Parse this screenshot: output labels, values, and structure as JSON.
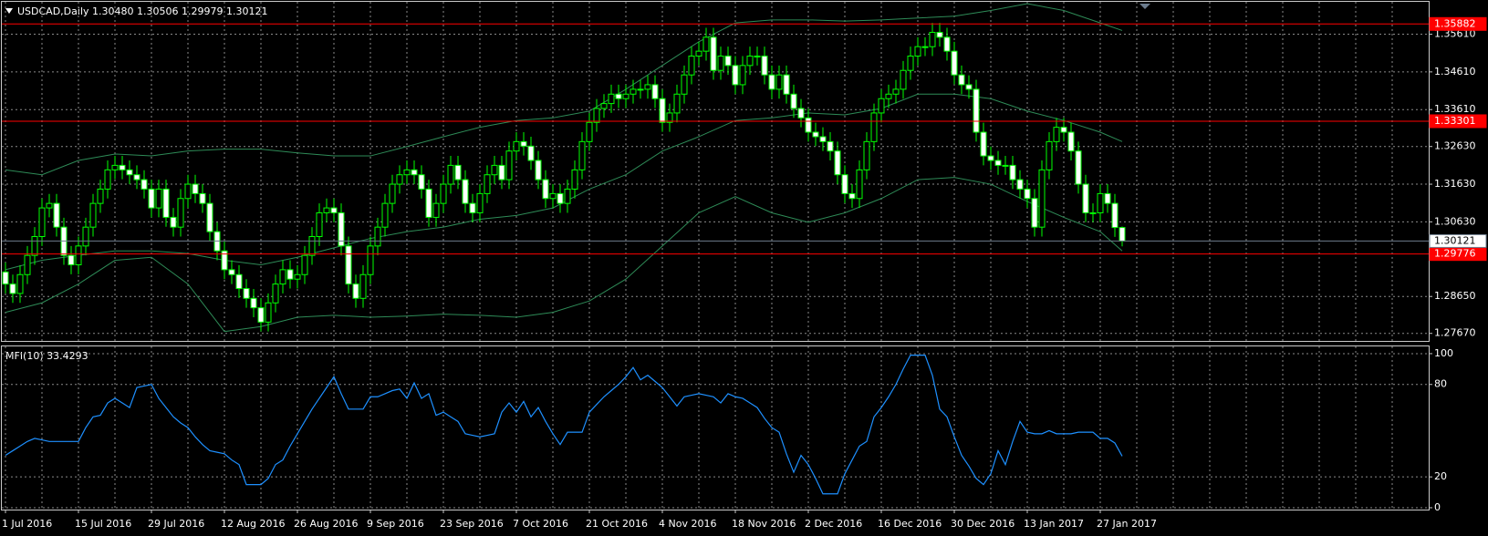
{
  "chart_data": [
    {
      "type": "candlestick",
      "title": "USDCAD,Daily 1.30480 1.30506 1.29979 1.30121",
      "categories": [
        "1 Jul 2016",
        null,
        null,
        null,
        null,
        null,
        null,
        null,
        null,
        null,
        "15 Jul 2016",
        null,
        null,
        null,
        null,
        null,
        null,
        null,
        null,
        null,
        "29 Jul 2016",
        null,
        null,
        null,
        null,
        null,
        null,
        null,
        null,
        null,
        "12 Aug 2016",
        null,
        null,
        null,
        null,
        null,
        null,
        null,
        null,
        null,
        "26 Aug 2016",
        null,
        null,
        null,
        null,
        null,
        null,
        null,
        null,
        null,
        "9 Sep 2016",
        null,
        null,
        null,
        null,
        null,
        null,
        null,
        null,
        null,
        "23 Sep 2016",
        null,
        null,
        null,
        null,
        null,
        null,
        null,
        null,
        null,
        "7 Oct 2016",
        null,
        null,
        null,
        null,
        null,
        null,
        null,
        null,
        null,
        "21 Oct 2016",
        null,
        null,
        null,
        null,
        null,
        null,
        null,
        null,
        null,
        "4 Nov 2016",
        null,
        null,
        null,
        null,
        null,
        null,
        null,
        null,
        null,
        "18 Nov 2016",
        null,
        null,
        null,
        null,
        null,
        null,
        null,
        null,
        null,
        "2 Dec 2016",
        null,
        null,
        null,
        null,
        null,
        null,
        null,
        null,
        null,
        "16 Dec 2016",
        null,
        null,
        null,
        null,
        null,
        null,
        null,
        null,
        null,
        "30 Dec 2016",
        null,
        null,
        null,
        null,
        null,
        null,
        null,
        null,
        null,
        "13 Jan 2017",
        null,
        null,
        null,
        null,
        null,
        null,
        null,
        null,
        null,
        "27 Jan 2017",
        null,
        null,
        null
      ],
      "open": [
        1.293,
        1.2898,
        1.2873,
        1.2923,
        1.2974,
        1.3024,
        1.31,
        1.3112,
        1.3049,
        1.2974,
        1.2949,
        1.2999,
        1.3049,
        1.3112,
        1.315,
        1.3201,
        1.3213,
        1.3201,
        1.3188,
        1.3175,
        1.315,
        1.31,
        1.315,
        1.3075,
        1.3049,
        1.3125,
        1.3163,
        1.3138,
        1.3112,
        1.3037,
        1.2986,
        1.2936,
        1.2923,
        1.2886,
        1.286,
        1.2835,
        1.2797,
        1.2848,
        1.2898,
        1.2936,
        1.2911,
        1.2923,
        1.2974,
        1.3024,
        1.3087,
        1.31,
        1.3087,
        1.2999,
        1.2898,
        1.286,
        1.2923,
        1.2999,
        1.3049,
        1.3112,
        1.3163,
        1.3188,
        1.3201,
        1.3188,
        1.315,
        1.3075,
        1.3112,
        1.3163,
        1.3213,
        1.3175,
        1.3112,
        1.3087,
        1.3138,
        1.3188,
        1.3213,
        1.3175,
        1.3251,
        1.3276,
        1.3264,
        1.3226,
        1.3175,
        1.3125,
        1.3138,
        1.3112,
        1.315,
        1.3201,
        1.3276,
        1.3327,
        1.3364,
        1.3377,
        1.3402,
        1.339,
        1.3402,
        1.3415,
        1.3415,
        1.3427,
        1.339,
        1.3327,
        1.3352,
        1.3402,
        1.3453,
        1.3503,
        1.3516,
        1.3553,
        1.3465,
        1.3503,
        1.3478,
        1.3427,
        1.3478,
        1.3503,
        1.3503,
        1.3453,
        1.3415,
        1.3453,
        1.3402,
        1.3364,
        1.3339,
        1.3301,
        1.3289,
        1.3276,
        1.3251,
        1.3188,
        1.3138,
        1.3125,
        1.3201,
        1.3276,
        1.3352,
        1.339,
        1.3402,
        1.3415,
        1.3465,
        1.3503,
        1.3528,
        1.3528,
        1.3566,
        1.3553,
        1.3516,
        1.3453,
        1.3427,
        1.3415,
        1.3301,
        1.3238,
        1.3226,
        1.3213,
        1.3213,
        1.3175,
        1.315,
        1.3125,
        1.3049,
        1.3201,
        1.3276,
        1.3314,
        1.3301,
        1.3251,
        1.3163,
        1.3087,
        1.3087,
        1.3138,
        1.3112,
        1.3048
      ],
      "high": [
        1.2955,
        1.2923,
        1.2948,
        1.2999,
        1.3049,
        1.3125,
        1.3137,
        1.3137,
        1.3074,
        1.2999,
        1.3024,
        1.3074,
        1.3137,
        1.3175,
        1.3226,
        1.3238,
        1.3238,
        1.3226,
        1.3213,
        1.32,
        1.3175,
        1.3175,
        1.3175,
        1.31,
        1.315,
        1.3188,
        1.3188,
        1.3163,
        1.3137,
        1.3062,
        1.3011,
        1.2961,
        1.2948,
        1.2911,
        1.2885,
        1.286,
        1.2873,
        1.2923,
        1.2961,
        1.2961,
        1.2948,
        1.2999,
        1.3049,
        1.3112,
        1.3125,
        1.3125,
        1.3112,
        1.3024,
        1.2923,
        1.2948,
        1.3024,
        1.3074,
        1.3137,
        1.3188,
        1.3213,
        1.3226,
        1.3226,
        1.3213,
        1.3175,
        1.3137,
        1.3188,
        1.3238,
        1.3238,
        1.32,
        1.3137,
        1.3163,
        1.3213,
        1.3238,
        1.3238,
        1.3276,
        1.3301,
        1.3301,
        1.3289,
        1.3251,
        1.32,
        1.3163,
        1.3163,
        1.3175,
        1.3226,
        1.3301,
        1.3352,
        1.3389,
        1.3402,
        1.3427,
        1.3427,
        1.3427,
        1.344,
        1.344,
        1.3452,
        1.3452,
        1.3415,
        1.3377,
        1.3427,
        1.3478,
        1.3528,
        1.3541,
        1.3578,
        1.3578,
        1.3528,
        1.3528,
        1.3503,
        1.3503,
        1.3528,
        1.3528,
        1.3528,
        1.3478,
        1.3478,
        1.3478,
        1.3427,
        1.3389,
        1.3364,
        1.3326,
        1.3314,
        1.3301,
        1.3276,
        1.3213,
        1.3163,
        1.3226,
        1.3301,
        1.3377,
        1.3415,
        1.3427,
        1.344,
        1.349,
        1.3528,
        1.3553,
        1.3553,
        1.3591,
        1.3591,
        1.3578,
        1.3541,
        1.3478,
        1.3452,
        1.344,
        1.3326,
        1.3263,
        1.3251,
        1.3238,
        1.3238,
        1.32,
        1.3175,
        1.315,
        1.3226,
        1.3301,
        1.3339,
        1.3339,
        1.3326,
        1.3276,
        1.3188,
        1.3112,
        1.3163,
        1.3163,
        1.3137,
        1.30506
      ],
      "low": [
        1.2873,
        1.2848,
        1.2848,
        1.2898,
        1.2949,
        1.2999,
        1.3075,
        1.3024,
        1.2949,
        1.2924,
        1.2924,
        1.2974,
        1.3024,
        1.3087,
        1.3125,
        1.3176,
        1.3176,
        1.3163,
        1.315,
        1.3125,
        1.3075,
        1.3075,
        1.305,
        1.3024,
        1.3024,
        1.31,
        1.3113,
        1.3087,
        1.3012,
        1.2961,
        1.2911,
        1.2898,
        1.2861,
        1.2835,
        1.281,
        1.2772,
        1.2772,
        1.2823,
        1.2873,
        1.2886,
        1.2886,
        1.2898,
        1.2949,
        1.2999,
        1.3062,
        1.3062,
        1.2974,
        1.2873,
        1.2835,
        1.2835,
        1.2898,
        1.2974,
        1.3024,
        1.3087,
        1.3138,
        1.3163,
        1.3163,
        1.3125,
        1.305,
        1.305,
        1.3087,
        1.3138,
        1.315,
        1.3087,
        1.3062,
        1.3062,
        1.3113,
        1.3163,
        1.315,
        1.315,
        1.3226,
        1.3239,
        1.3201,
        1.315,
        1.31,
        1.31,
        1.3087,
        1.3087,
        1.3125,
        1.3176,
        1.3251,
        1.3302,
        1.3339,
        1.3352,
        1.3365,
        1.3365,
        1.3377,
        1.339,
        1.339,
        1.3365,
        1.3302,
        1.3302,
        1.3327,
        1.3377,
        1.3428,
        1.3478,
        1.3491,
        1.344,
        1.344,
        1.3453,
        1.3402,
        1.3402,
        1.3453,
        1.3478,
        1.3428,
        1.339,
        1.339,
        1.3377,
        1.3339,
        1.3314,
        1.3276,
        1.3264,
        1.3251,
        1.3226,
        1.3163,
        1.3113,
        1.31,
        1.31,
        1.3176,
        1.3251,
        1.3327,
        1.3365,
        1.3377,
        1.339,
        1.344,
        1.3478,
        1.3503,
        1.3503,
        1.3528,
        1.3491,
        1.3428,
        1.3402,
        1.339,
        1.3276,
        1.3213,
        1.3201,
        1.3188,
        1.3188,
        1.315,
        1.3125,
        1.31,
        1.3024,
        1.3024,
        1.3176,
        1.3251,
        1.3276,
        1.3226,
        1.3138,
        1.3062,
        1.3062,
        1.3062,
        1.3087,
        1.3023,
        1.29979
      ],
      "close": [
        1.2898,
        1.2873,
        1.2923,
        1.2974,
        1.3024,
        1.31,
        1.3112,
        1.3049,
        1.2974,
        1.2949,
        1.2999,
        1.3049,
        1.3112,
        1.315,
        1.3201,
        1.3213,
        1.3201,
        1.3188,
        1.3175,
        1.315,
        1.31,
        1.315,
        1.3075,
        1.3049,
        1.3125,
        1.3163,
        1.3138,
        1.3112,
        1.3037,
        1.2986,
        1.2936,
        1.2923,
        1.2886,
        1.286,
        1.2835,
        1.2797,
        1.2848,
        1.2898,
        1.2936,
        1.2911,
        1.2923,
        1.2974,
        1.3024,
        1.3087,
        1.31,
        1.3087,
        1.2999,
        1.2898,
        1.286,
        1.2923,
        1.2999,
        1.3049,
        1.3112,
        1.3163,
        1.3188,
        1.3201,
        1.3188,
        1.315,
        1.3075,
        1.3112,
        1.3163,
        1.3213,
        1.3175,
        1.3112,
        1.3087,
        1.3138,
        1.3188,
        1.3213,
        1.3175,
        1.3251,
        1.3276,
        1.3264,
        1.3226,
        1.3175,
        1.3125,
        1.3138,
        1.3112,
        1.315,
        1.3201,
        1.3276,
        1.3327,
        1.3364,
        1.3377,
        1.3402,
        1.339,
        1.3402,
        1.3415,
        1.3415,
        1.3427,
        1.339,
        1.3327,
        1.3352,
        1.3402,
        1.3453,
        1.3503,
        1.3516,
        1.3553,
        1.3465,
        1.3503,
        1.3478,
        1.3427,
        1.3478,
        1.3503,
        1.3503,
        1.3453,
        1.3415,
        1.3453,
        1.3402,
        1.3364,
        1.3339,
        1.3301,
        1.3289,
        1.3276,
        1.3251,
        1.3188,
        1.3138,
        1.3125,
        1.3201,
        1.3276,
        1.3352,
        1.339,
        1.3402,
        1.3415,
        1.3465,
        1.3503,
        1.3528,
        1.3528,
        1.3566,
        1.3553,
        1.3516,
        1.3453,
        1.3427,
        1.3415,
        1.3301,
        1.3238,
        1.3226,
        1.3213,
        1.3213,
        1.3175,
        1.315,
        1.3125,
        1.3049,
        1.3201,
        1.3276,
        1.3314,
        1.3301,
        1.3251,
        1.3163,
        1.3087,
        1.3087,
        1.3138,
        1.3112,
        1.3048,
        1.30121
      ],
      "wick_color": "#00ff00",
      "bull_fill": "#000000",
      "bear_fill": "#ffffff",
      "bands": [
        {
          "color": "#2e8b57",
          "x": [
            0,
            5,
            10,
            15,
            20,
            25,
            30,
            35,
            40,
            45,
            50,
            55,
            60,
            65,
            70,
            75,
            80,
            85,
            90,
            95,
            100,
            105,
            110,
            115,
            120,
            125,
            130,
            135,
            140,
            145,
            150,
            153
          ],
          "values": [
            1.3201,
            1.3188,
            1.3226,
            1.3243,
            1.3238,
            1.3251,
            1.3256,
            1.3256,
            1.3246,
            1.3238,
            1.3238,
            1.3263,
            1.3289,
            1.3314,
            1.3332,
            1.3339,
            1.3357,
            1.3415,
            1.3478,
            1.3541,
            1.3591,
            1.3599,
            1.3599,
            1.3596,
            1.3599,
            1.3604,
            1.3609,
            1.3624,
            1.3642,
            1.3624,
            1.3591,
            1.3571
          ]
        },
        {
          "color": "#2e8b57",
          "x": [
            0,
            5,
            10,
            15,
            20,
            25,
            30,
            35,
            40,
            45,
            50,
            55,
            60,
            65,
            70,
            75,
            80,
            85,
            90,
            95,
            100,
            105,
            110,
            115,
            120,
            125,
            130,
            135,
            140,
            145,
            150,
            153
          ],
          "values": [
            1.2936,
            1.2961,
            1.2974,
            1.2986,
            1.2986,
            1.2979,
            1.2961,
            1.2949,
            1.2969,
            1.2994,
            1.3019,
            1.3037,
            1.3049,
            1.307,
            1.308,
            1.31,
            1.315,
            1.3188,
            1.3251,
            1.3289,
            1.3332,
            1.3339,
            1.3352,
            1.3347,
            1.3364,
            1.3402,
            1.3402,
            1.339,
            1.3357,
            1.3332,
            1.3301,
            1.3276
          ]
        },
        {
          "color": "#2e8b57",
          "x": [
            0,
            5,
            10,
            15,
            20,
            25,
            30,
            35,
            40,
            45,
            50,
            55,
            60,
            65,
            70,
            75,
            80,
            85,
            90,
            95,
            100,
            105,
            110,
            115,
            120,
            125,
            130,
            135,
            140,
            145,
            150,
            153
          ],
          "values": [
            1.2823,
            1.2848,
            1.2898,
            1.2961,
            1.2969,
            1.2898,
            1.2772,
            1.2785,
            1.281,
            1.2815,
            1.281,
            1.2813,
            1.2818,
            1.2815,
            1.281,
            1.2823,
            1.2853,
            1.2911,
            1.2999,
            1.3087,
            1.313,
            1.3087,
            1.3062,
            1.3087,
            1.3125,
            1.3175,
            1.3181,
            1.3163,
            1.3117,
            1.3075,
            1.3037,
            1.2986
          ]
        }
      ],
      "ylim": [
        1.2747,
        1.3647
      ],
      "yticks": [
        {
          "value": 1.3561,
          "label": "1.35610"
        },
        {
          "value": 1.3461,
          "label": "1.34610"
        },
        {
          "value": 1.3361,
          "label": "1.33610"
        },
        {
          "value": 1.3263,
          "label": "1.32630"
        },
        {
          "value": 1.3163,
          "label": "1.31630"
        },
        {
          "value": 1.3063,
          "label": "1.30630"
        },
        {
          "value": 1.2865,
          "label": "1.28650"
        },
        {
          "value": 1.2767,
          "label": "1.27670"
        }
      ],
      "hlines": [
        {
          "value": 1.35882,
          "color": "#ff0000",
          "text_color": "#ffffff"
        },
        {
          "value": 1.33301,
          "color": "#ff0000",
          "text_color": "#ffffff"
        },
        {
          "value": 1.29776,
          "color": "#ff0000",
          "text_color": "#ffffff"
        },
        {
          "value": 1.30121,
          "color": "#6b7b8c",
          "text_color": "#000000"
        }
      ],
      "grid": true
    },
    {
      "type": "line",
      "title": "MFI(10) 33.4293",
      "color": "#1e90ff",
      "values": [
        34,
        37,
        40,
        43,
        45,
        44,
        43,
        43,
        43,
        43,
        43,
        52,
        59,
        60,
        68,
        71,
        68,
        65,
        78,
        79,
        80,
        71,
        65,
        59,
        55,
        52,
        46,
        41,
        37,
        36,
        35,
        31,
        28,
        15,
        15,
        15,
        19,
        28,
        31,
        40,
        48,
        56,
        64,
        71,
        78,
        85,
        74,
        64,
        64,
        64,
        72,
        72,
        74,
        76,
        77,
        71,
        81,
        71,
        74,
        60,
        62,
        59,
        56,
        48,
        47,
        46,
        47,
        48,
        62,
        68,
        62,
        69,
        59,
        65,
        56,
        48,
        41,
        49,
        49,
        49,
        62,
        67,
        72,
        76,
        80,
        85,
        91,
        83,
        86,
        82,
        78,
        72,
        66,
        72,
        73,
        74,
        73,
        72,
        68,
        74,
        72,
        71,
        68,
        65,
        58,
        52,
        49,
        35,
        23,
        34,
        28,
        19,
        9,
        9,
        9,
        22,
        31,
        40,
        43,
        59,
        65,
        72,
        80,
        90,
        99,
        99,
        99,
        86,
        64,
        59,
        46,
        34,
        27,
        19,
        15,
        22,
        37,
        28,
        43,
        56,
        49,
        48,
        48,
        50,
        48,
        48,
        48,
        49,
        49,
        49,
        45,
        45,
        42,
        33.4293
      ],
      "ylim": [
        -1.2,
        104.7
      ],
      "yticks": [
        0,
        20,
        80,
        100
      ],
      "grid": true
    }
  ]
}
